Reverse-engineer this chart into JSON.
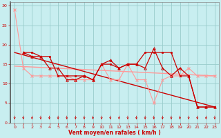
{
  "xlabel": "Vent moyen/en rafales ( km/h )",
  "bg_color": "#c8eef0",
  "grid_color": "#99cccc",
  "xlim": [
    -0.5,
    23.5
  ],
  "ylim": [
    0,
    31
  ],
  "xticks": [
    0,
    1,
    2,
    3,
    4,
    5,
    6,
    7,
    8,
    9,
    10,
    11,
    12,
    13,
    14,
    15,
    16,
    17,
    18,
    19,
    20,
    21,
    22,
    23
  ],
  "yticks": [
    0,
    5,
    10,
    15,
    20,
    25,
    30
  ],
  "line_pink_trend_x": [
    0,
    23
  ],
  "line_pink_trend_y": [
    14.5,
    12.0
  ],
  "line_red_trend_x": [
    0,
    23
  ],
  "line_red_trend_y": [
    18.0,
    4.0
  ],
  "line_pink_data_x": [
    0,
    1,
    2,
    3,
    4,
    5,
    6,
    7,
    8,
    9,
    10,
    11,
    12,
    13,
    14,
    15,
    16,
    17,
    18,
    19,
    20,
    21,
    22,
    23
  ],
  "line_pink_data_y": [
    29,
    14,
    12,
    12,
    12,
    12,
    12,
    11,
    11,
    11,
    15,
    11,
    11,
    15,
    11,
    11,
    5,
    11,
    12,
    12,
    14,
    12,
    12,
    12
  ],
  "line_dark_red_sq_x": [
    1,
    2,
    3,
    4,
    5,
    6,
    7,
    8,
    9,
    10,
    11,
    12,
    13,
    14,
    15,
    16,
    17,
    18,
    19,
    20,
    21,
    22,
    23
  ],
  "line_dark_red_sq_y": [
    18,
    18,
    17,
    17,
    12,
    12,
    12,
    12,
    11,
    15,
    15,
    14,
    15,
    15,
    18,
    18,
    18,
    18,
    12,
    12,
    4,
    4,
    4
  ],
  "line_dark_red_tri_x": [
    1,
    2,
    3,
    4,
    5,
    6,
    7,
    8,
    9,
    10,
    11,
    12,
    13,
    14,
    15,
    16,
    17,
    18,
    19,
    20,
    21,
    22,
    23
  ],
  "line_dark_red_tri_y": [
    18,
    17,
    17,
    14,
    14,
    11,
    11,
    12,
    11,
    15,
    16,
    14,
    15,
    15,
    14,
    19,
    14,
    12,
    14,
    12,
    4,
    4,
    4
  ],
  "dark_red": "#cc0000",
  "pink": "#ff9999",
  "arrow_color": "#cc0000"
}
